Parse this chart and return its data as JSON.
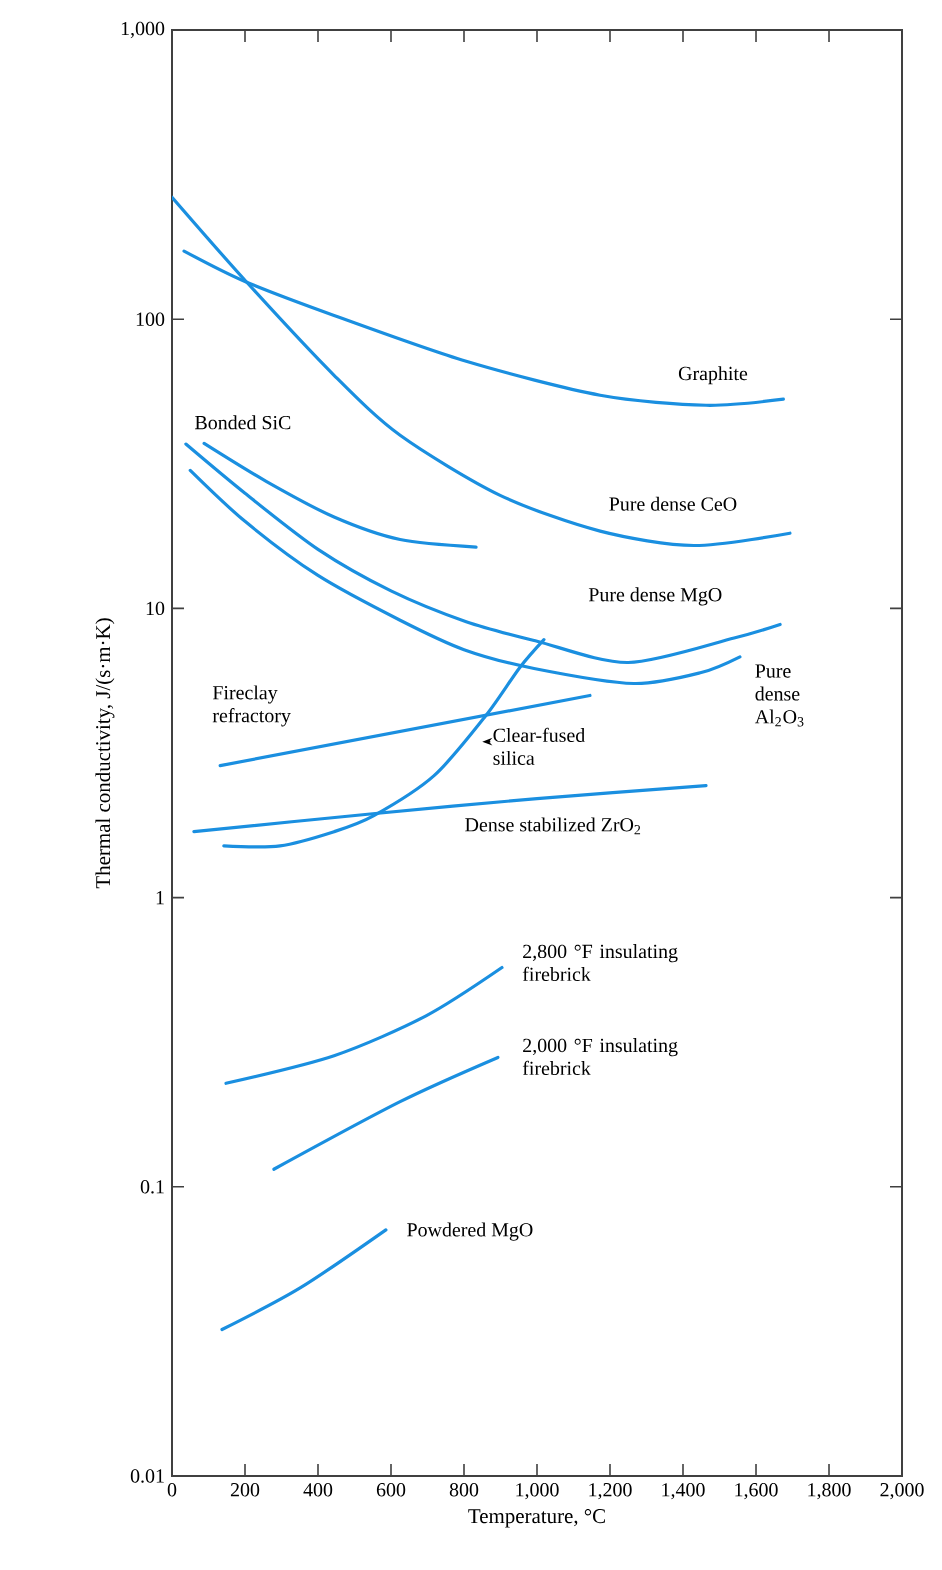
{
  "chart_data": {
    "type": "line",
    "xlabel": "Temperature, °C",
    "ylabel": "Thermal conductivity, J/(s·m·K)",
    "xlim": [
      0,
      2000
    ],
    "xticks": [
      0,
      200,
      400,
      600,
      800,
      {
        "value": 1000,
        "label": "1,000"
      },
      {
        "value": 1200,
        "label": "1,200"
      },
      {
        "value": 1400,
        "label": "1,400"
      },
      {
        "value": 1600,
        "label": "1,600"
      },
      {
        "value": 1800,
        "label": "1,800"
      },
      {
        "value": 2000,
        "label": "2,000"
      }
    ],
    "ylim": [
      0.01,
      1000
    ],
    "yticks": [
      0.01,
      0.1,
      1,
      10,
      100,
      {
        "value": 1000,
        "label": "1,000"
      }
    ],
    "log": "y",
    "grid": false,
    "legend": false,
    "series": [
      {
        "name": "Graphite",
        "color": "#1a8fe0",
        "x": [
          33,
          200,
          444,
          806,
          1173,
          1463,
          1675
        ],
        "values": [
          172,
          135,
          103,
          71.5,
          54.6,
          50.4,
          52.9
        ]
      },
      {
        "name": "Pure dense CeO",
        "color": "#1a8fe0",
        "x": [
          0,
          203,
          444,
          625,
          899,
          1173,
          1430,
          1693
        ],
        "values": [
          264,
          135,
          64,
          39.7,
          24.6,
          18.5,
          16.5,
          18.2
        ]
      },
      {
        "name": "Bonded SiC",
        "color": "#1a8fe0",
        "x": [
          88,
          258,
          444,
          625,
          833
        ],
        "values": [
          37.2,
          27.5,
          20.7,
          17.3,
          16.3
        ]
      },
      {
        "name": "Pure dense MgO",
        "color": "#1a8fe0",
        "x": [
          38,
          200,
          400,
          600,
          806,
          1000,
          1250,
          1540,
          1666
        ],
        "values": [
          37,
          25,
          16,
          11.5,
          9.0,
          7.7,
          6.5,
          7.9,
          8.8
        ]
      },
      {
        "name": "Pure dense Al$_{2}$O$_{3}$",
        "color": "#1a8fe0",
        "x": [
          50,
          200,
          400,
          625,
          800,
          992,
          1265,
          1450,
          1556
        ],
        "values": [
          30,
          20,
          13,
          9.1,
          7.2,
          6.2,
          5.5,
          6.0,
          6.8
        ]
      },
      {
        "name": "Fireclay refractory",
        "color": "#1a8fe0",
        "x": [
          132,
          1145
        ],
        "values": [
          2.86,
          5.0
        ]
      },
      {
        "name": "Clear-fused silica",
        "color": "#1a8fe0",
        "x": [
          142,
          296,
          444,
          553,
          718,
          860,
          953,
          1019
        ],
        "values": [
          1.51,
          1.51,
          1.69,
          1.92,
          2.64,
          4.26,
          6.25,
          7.8
        ]
      },
      {
        "name": "Dense stabilized ZrO$_{2}$",
        "color": "#1a8fe0",
        "x": [
          60,
          550,
          1000,
          1463
        ],
        "values": [
          1.69,
          1.95,
          2.2,
          2.44
        ]
      },
      {
        "name": "2,800 °F insulating firebrick",
        "color": "#1a8fe0",
        "x": [
          148,
          444,
          696,
          904
        ],
        "values": [
          0.228,
          0.284,
          0.39,
          0.573
        ]
      },
      {
        "name": "2,000 °F insulating firebrick",
        "color": "#1a8fe0",
        "x": [
          279,
          625,
          893
        ],
        "values": [
          0.115,
          0.197,
          0.28
        ]
      },
      {
        "name": "Powdered MgO",
        "color": "#1a8fe0",
        "x": [
          137,
          351,
          586
        ],
        "values": [
          0.0321,
          0.0447,
          0.071
        ]
      }
    ]
  }
}
